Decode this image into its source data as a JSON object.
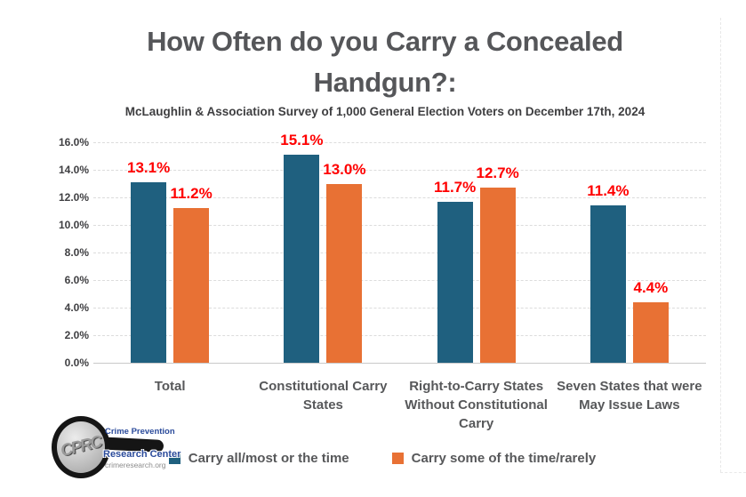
{
  "chart_data": {
    "type": "bar",
    "title": "How Often do you Carry a Concealed Handgun?:",
    "subtitle": "McLaughlin & Association Survey of 1,000 General Election Voters on December 17th, 2024",
    "categories": [
      "Total",
      "Constitutional Carry States",
      "Right-to-Carry States Without Constitutional Carry",
      "Seven States that were May Issue Laws"
    ],
    "series": [
      {
        "name": "Carry all/most or the time",
        "color": "#1F607F",
        "values": [
          13.1,
          15.1,
          11.7,
          11.4
        ]
      },
      {
        "name": "Carry some of the time/rarely",
        "color": "#E87134",
        "values": [
          11.2,
          13.0,
          12.7,
          4.4
        ]
      }
    ],
    "ylim": [
      0,
      16
    ],
    "ytick_step": 2,
    "ytick_labels": [
      "0.0%",
      "2.0%",
      "4.0%",
      "6.0%",
      "8.0%",
      "10.0%",
      "12.0%",
      "14.0%",
      "16.0%"
    ],
    "value_label_color": "#FF0000",
    "grid": true,
    "legend_position": "bottom"
  },
  "logo": {
    "monogram": "CPRC",
    "org_line1": "Crime Prevention",
    "org_line2": "Research Center",
    "website": "crimeresearch.org"
  }
}
